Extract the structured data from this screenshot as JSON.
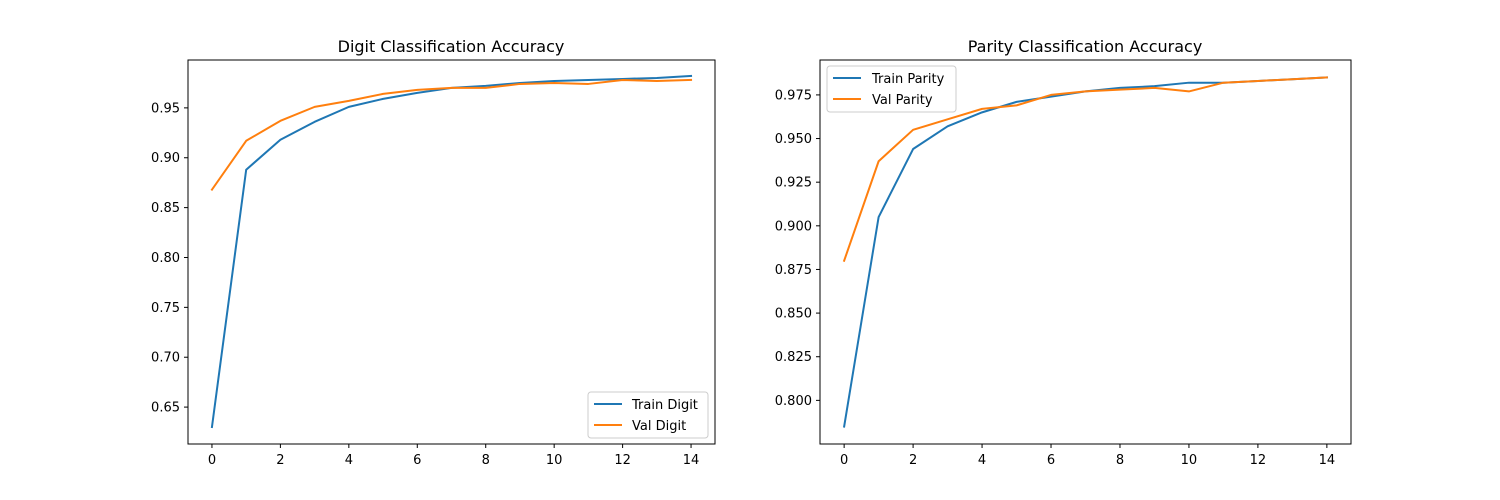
{
  "chart_data": [
    {
      "type": "line",
      "title": "Digit Classification Accuracy",
      "xlabel": "",
      "ylabel": "",
      "xlim": [
        -0.7,
        14.7
      ],
      "ylim": [
        0.613,
        0.998
      ],
      "xticks": [
        0,
        2,
        4,
        6,
        8,
        10,
        12,
        14
      ],
      "xtick_labels": [
        "0",
        "2",
        "4",
        "6",
        "8",
        "10",
        "12",
        "14"
      ],
      "yticks": [
        0.65,
        0.7,
        0.75,
        0.8,
        0.85,
        0.9,
        0.95
      ],
      "ytick_labels": [
        "0.65",
        "0.70",
        "0.75",
        "0.80",
        "0.85",
        "0.90",
        "0.95"
      ],
      "grid": false,
      "legend_position": "lower-right",
      "x": [
        0,
        1,
        2,
        3,
        4,
        5,
        6,
        7,
        8,
        9,
        10,
        11,
        12,
        13,
        14
      ],
      "series": [
        {
          "name": "Train Digit",
          "color": "#1f77b4",
          "values": [
            0.63,
            0.888,
            0.918,
            0.936,
            0.951,
            0.959,
            0.965,
            0.97,
            0.972,
            0.975,
            0.977,
            0.978,
            0.979,
            0.98,
            0.982
          ]
        },
        {
          "name": "Val Digit",
          "color": "#ff7f0e",
          "values": [
            0.868,
            0.917,
            0.937,
            0.951,
            0.957,
            0.964,
            0.968,
            0.97,
            0.97,
            0.974,
            0.975,
            0.974,
            0.978,
            0.977,
            0.978
          ]
        }
      ]
    },
    {
      "type": "line",
      "title": "Parity Classification Accuracy",
      "xlabel": "",
      "ylabel": "",
      "xlim": [
        -0.7,
        14.7
      ],
      "ylim": [
        0.775,
        0.995
      ],
      "xticks": [
        0,
        2,
        4,
        6,
        8,
        10,
        12,
        14
      ],
      "xtick_labels": [
        "0",
        "2",
        "4",
        "6",
        "8",
        "10",
        "12",
        "14"
      ],
      "yticks": [
        0.8,
        0.825,
        0.85,
        0.875,
        0.9,
        0.925,
        0.95,
        0.975
      ],
      "ytick_labels": [
        "0.800",
        "0.825",
        "0.850",
        "0.875",
        "0.900",
        "0.925",
        "0.950",
        "0.975"
      ],
      "grid": false,
      "legend_position": "upper-left",
      "x": [
        0,
        1,
        2,
        3,
        4,
        5,
        6,
        7,
        8,
        9,
        10,
        11,
        12,
        13,
        14
      ],
      "series": [
        {
          "name": "Train Parity",
          "color": "#1f77b4",
          "values": [
            0.785,
            0.905,
            0.944,
            0.957,
            0.965,
            0.971,
            0.974,
            0.977,
            0.979,
            0.98,
            0.982,
            0.982,
            0.983,
            0.984,
            0.985
          ]
        },
        {
          "name": "Val Parity",
          "color": "#ff7f0e",
          "values": [
            0.88,
            0.937,
            0.955,
            0.961,
            0.967,
            0.969,
            0.975,
            0.977,
            0.978,
            0.979,
            0.977,
            0.982,
            0.983,
            0.984,
            0.985
          ]
        }
      ]
    }
  ]
}
